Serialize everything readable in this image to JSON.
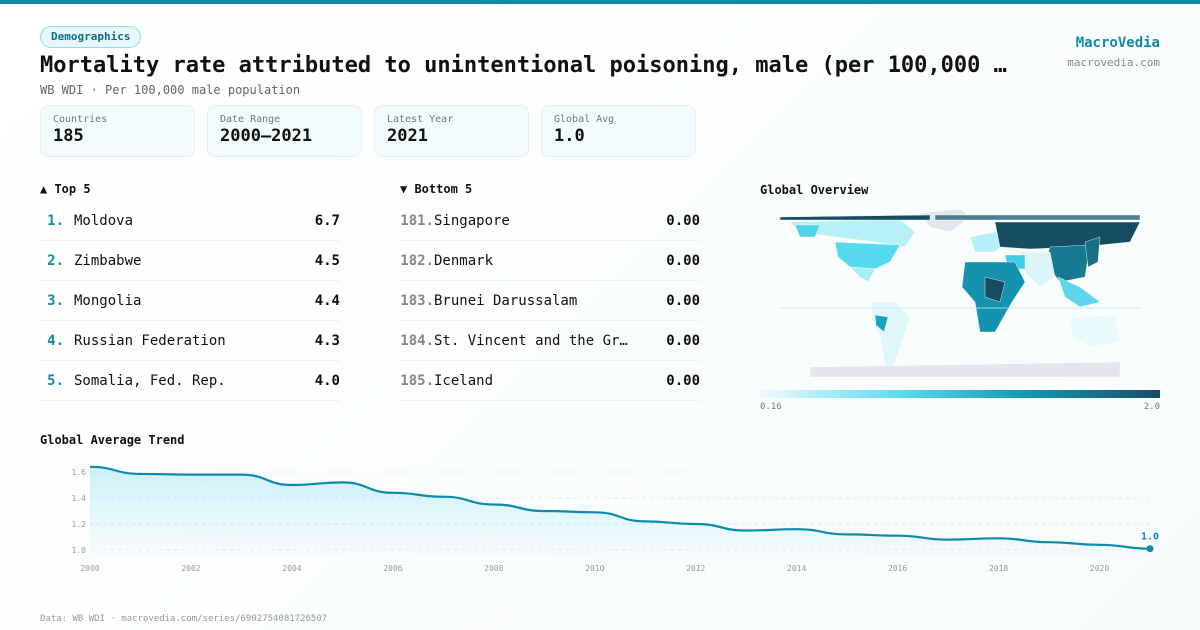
{
  "header": {
    "category": "Demographics",
    "title": "Mortality rate attributed to unintentional poisoning, male (per 100,000 …",
    "subtitle": "WB WDI · Per 100,000 male population",
    "brand": "MacroVedia",
    "brand_url": "macrovedia.com"
  },
  "stats": [
    {
      "label": "Countries",
      "value": "185"
    },
    {
      "label": "Date Range",
      "value": "2000–2021"
    },
    {
      "label": "Latest Year",
      "value": "2021"
    },
    {
      "label": "Global Avg",
      "value": "1.0"
    }
  ],
  "top5": {
    "title": "▲ Top 5",
    "items": [
      {
        "rank": "1.",
        "name": "Moldova",
        "value": "6.7"
      },
      {
        "rank": "2.",
        "name": "Zimbabwe",
        "value": "4.5"
      },
      {
        "rank": "3.",
        "name": "Mongolia",
        "value": "4.4"
      },
      {
        "rank": "4.",
        "name": "Russian Federation",
        "value": "4.3"
      },
      {
        "rank": "5.",
        "name": "Somalia, Fed. Rep.",
        "value": "4.0"
      }
    ]
  },
  "bottom5": {
    "title": "▼ Bottom 5",
    "items": [
      {
        "rank": "181.",
        "name": "Singapore",
        "value": "0.00"
      },
      {
        "rank": "182.",
        "name": "Denmark",
        "value": "0.00"
      },
      {
        "rank": "183.",
        "name": "Brunei Darussalam",
        "value": "0.00"
      },
      {
        "rank": "184.",
        "name": "St. Vincent and the Gr…",
        "value": "0.00"
      },
      {
        "rank": "185.",
        "name": "Iceland",
        "value": "0.00"
      }
    ]
  },
  "map": {
    "title": "Global Overview",
    "legend_min": "0.16",
    "legend_max": "2.0",
    "colors": [
      "#effbfd",
      "#5bdcee",
      "#149bb7",
      "#174d62"
    ]
  },
  "chart_data": {
    "type": "line",
    "title": "Global Average Trend",
    "x": [
      2000,
      2001,
      2002,
      2003,
      2004,
      2005,
      2006,
      2007,
      2008,
      2009,
      2010,
      2011,
      2012,
      2013,
      2014,
      2015,
      2016,
      2017,
      2018,
      2019,
      2020,
      2021
    ],
    "values": [
      1.64,
      1.585,
      1.58,
      1.58,
      1.5,
      1.52,
      1.44,
      1.41,
      1.35,
      1.3,
      1.29,
      1.22,
      1.2,
      1.15,
      1.16,
      1.12,
      1.11,
      1.08,
      1.09,
      1.06,
      1.04,
      1.01
    ],
    "yticks": [
      "1.0",
      "1.2",
      "1.4",
      "1.6"
    ],
    "xticks": [
      "2000",
      "2002",
      "2004",
      "2006",
      "2008",
      "2010",
      "2012",
      "2014",
      "2016",
      "2018",
      "2020"
    ],
    "ylim": [
      1.0,
      1.6
    ],
    "grid": true,
    "end_label": "1.0",
    "color": "#0e8aaa"
  },
  "footer": "Data: WB WDI · macrovedia.com/series/6902754081726507"
}
